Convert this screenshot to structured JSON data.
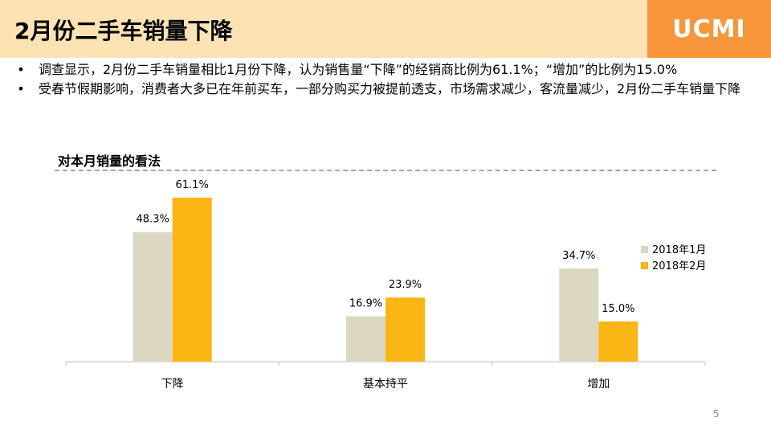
{
  "header": {
    "title": "2月份二手车销量下降",
    "logo_text": "UCMI",
    "colors": {
      "title_bg": "#fde3b3",
      "logo_bg": "#f7963a"
    }
  },
  "bullets": [
    "调查显示，2月份二手车销量相比1月份下降，认为销售量“下降”的经销商比例为61.1%；“增加”的比例为15.0%",
    "受春节假期影响，消费者大多已在年前买车，一部分购买力被提前透支，市场需求减少，客流量减少，2月份二手车销量下降"
  ],
  "chart_data": {
    "type": "bar",
    "title": "对本月销量的看法",
    "categories": [
      "下降",
      "基本持平",
      "增加"
    ],
    "series": [
      {
        "name": "2018年1月",
        "values": [
          48.3,
          16.9,
          34.7
        ],
        "labels": [
          "48.3%",
          "16.9%",
          "34.7%"
        ],
        "color": "#dcd7c1"
      },
      {
        "name": "2018年2月",
        "values": [
          61.1,
          23.9,
          15.0
        ],
        "labels": [
          "61.1%",
          "23.9%",
          "15.0%"
        ],
        "color": "#fbb515"
      }
    ],
    "ylim": [
      0,
      70
    ],
    "grid": false,
    "legend_position": "right"
  },
  "page_number": "5"
}
